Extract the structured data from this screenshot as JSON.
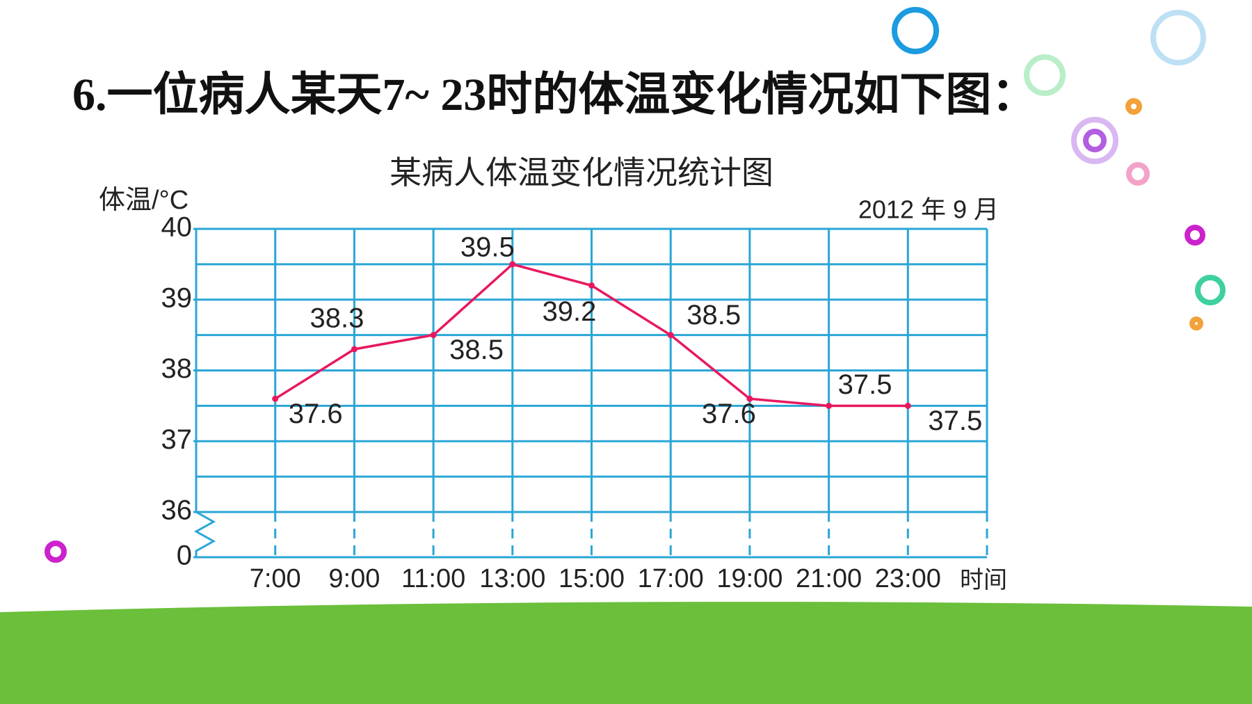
{
  "heading": "6.一位病人某天7~ 23时的体温变化情况如下图：",
  "chart_data": {
    "type": "line",
    "title": "某病人体温变化情况统计图",
    "subtitle": "2012 年 9 月",
    "y_label": "体温/°C",
    "x_label": "时间",
    "categories": [
      "7:00",
      "9:00",
      "11:00",
      "13:00",
      "15:00",
      "17:00",
      "19:00",
      "21:00",
      "23:00"
    ],
    "series": [
      {
        "color": "#e8185f",
        "values": [
          37.6,
          38.3,
          38.5,
          39.5,
          39.2,
          38.5,
          37.6,
          37.5,
          37.5
        ]
      }
    ],
    "ylim": [
      0,
      40
    ],
    "yticks": [
      0,
      36,
      37,
      38,
      39,
      40
    ],
    "axis_break": [
      0,
      36
    ],
    "grid": true,
    "grid_step": 0.5,
    "grid_color": "#2aa6d6"
  }
}
